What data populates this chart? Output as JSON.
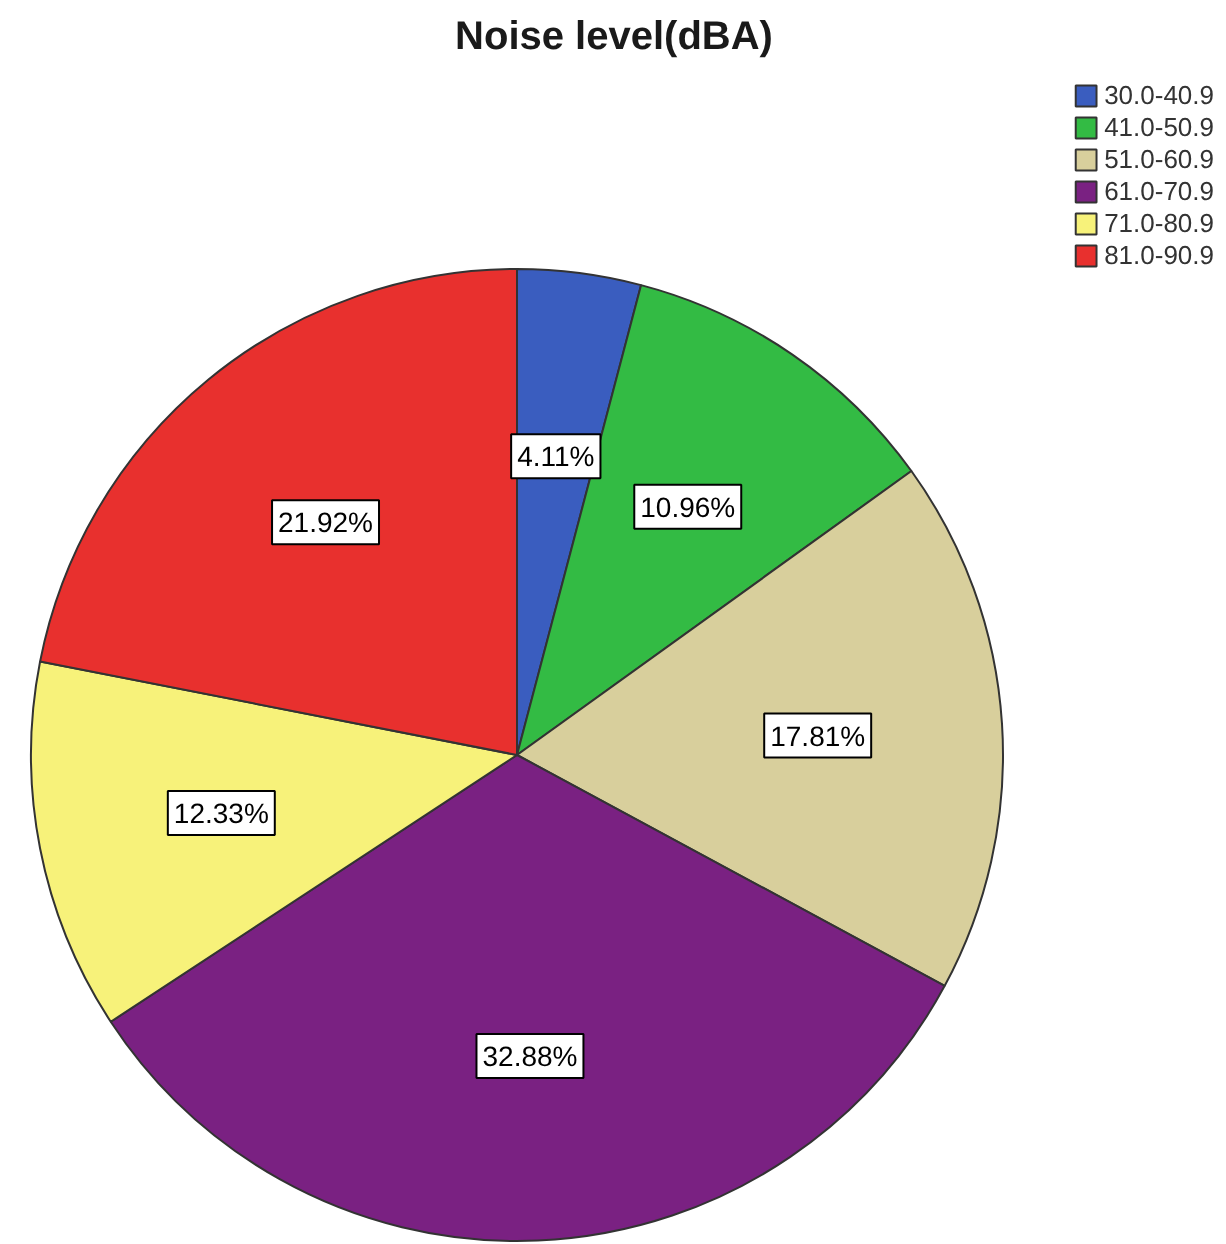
{
  "chart_data": {
    "type": "pie",
    "title": "Noise level(dBA)",
    "categories": [
      "30.0-40.9",
      "41.0-50.9",
      "51.0-60.9",
      "61.0-70.9",
      "71.0-80.9",
      "81.0-90.9"
    ],
    "values": [
      4.11,
      10.96,
      17.81,
      32.88,
      12.33,
      21.92
    ],
    "colors": [
      "#3a5dbf",
      "#33bb44",
      "#d8cf9c",
      "#7a2182",
      "#f7f27a",
      "#e8302e"
    ],
    "value_labels": [
      "4.11%",
      "10.96%",
      "17.81%",
      "32.88%",
      "12.33%",
      "21.92%"
    ],
    "legend": "top right"
  }
}
